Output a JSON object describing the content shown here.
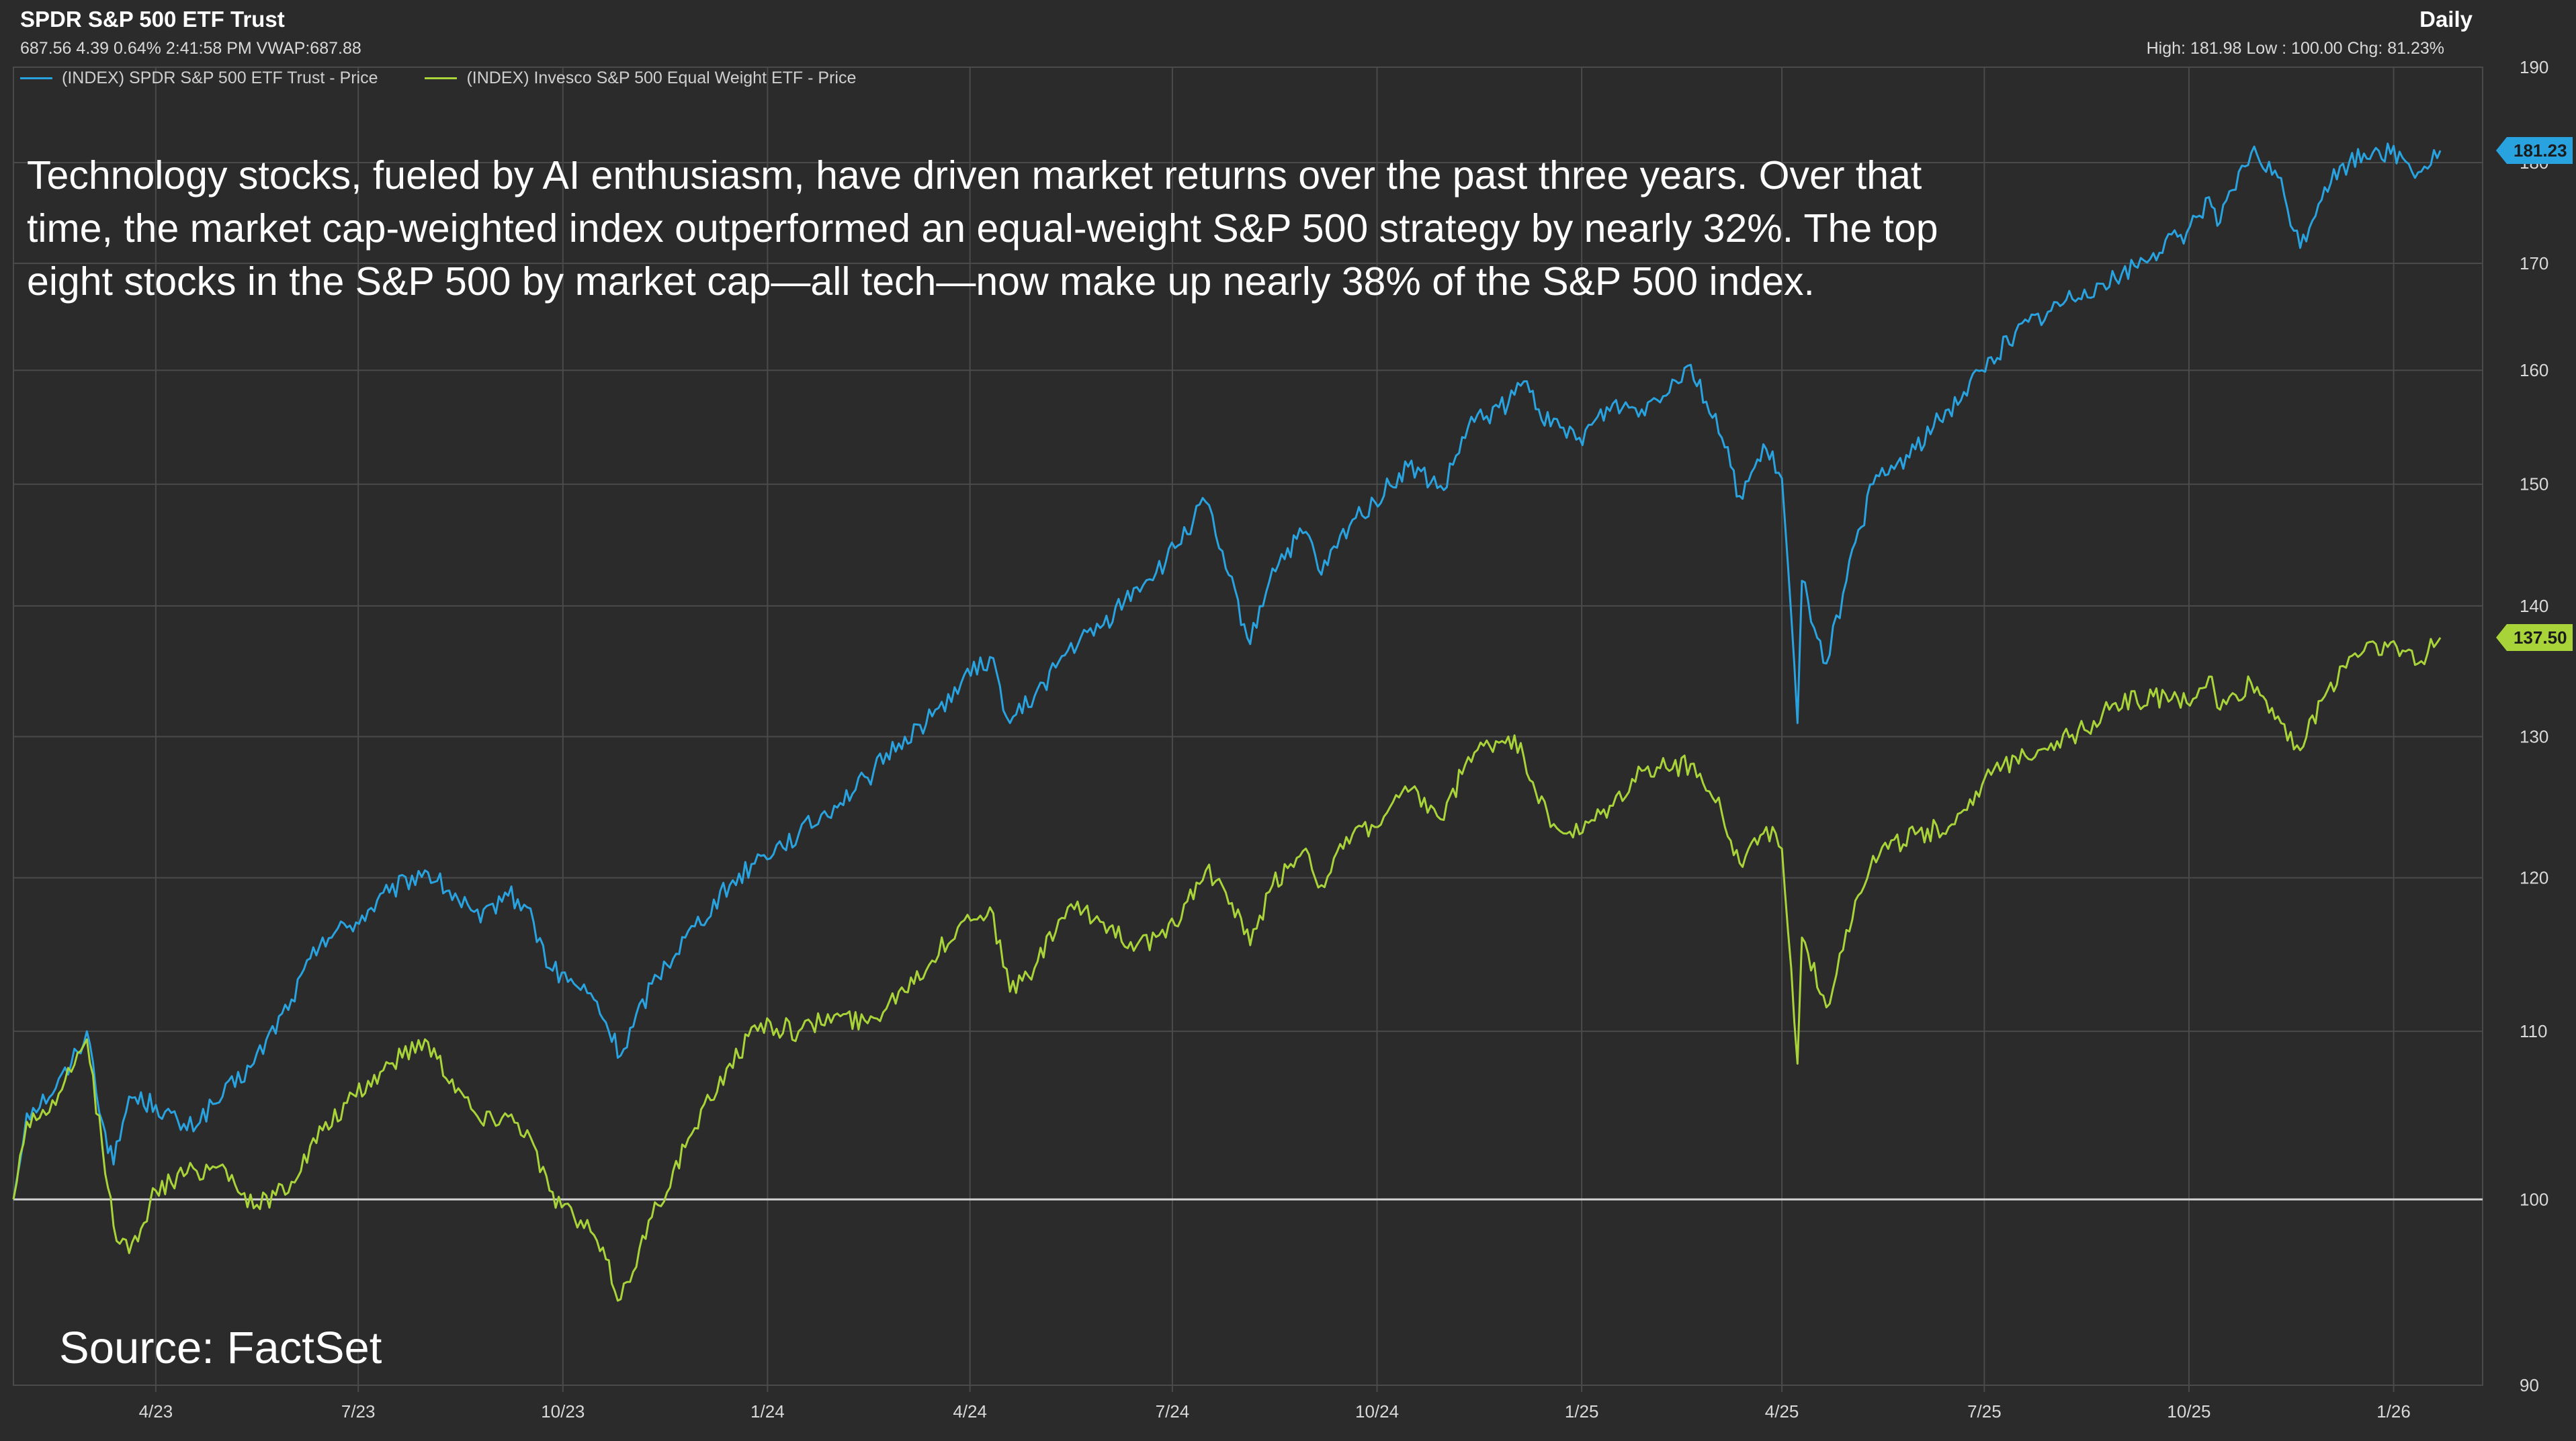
{
  "header": {
    "title": "SPDR S&P 500 ETF Trust",
    "quote": "687.56 4.39 0.64% 2:41:58 PM VWAP:687.88",
    "period": "Daily",
    "stats": "High: 181.98 Low : 100.00 Chg: 81.23%"
  },
  "annotation": "Technology stocks, fueled by AI enthusiasm, have driven market returns over the past three years. Over that time, the market cap-weighted index outperformed an equal-weight S&P 500 strategy by nearly 32%. The top eight stocks in the S&P 500 by market cap—all tech—now make up nearly 38% of the S&P 500 index.",
  "source": "Source: FactSet",
  "colors": {
    "background": "#2b2b2b",
    "grid": "#4a4a4a",
    "baseline": "#d0d0d0",
    "spy": "#29a3e0",
    "rsp": "#a8d43a",
    "axis_text": "#d9d9d9"
  },
  "chart_data": {
    "type": "line",
    "x_start": "2023-01-27",
    "x_end": "2026-01-22",
    "x_range": [
      "2023-01-27",
      "2026-02-10"
    ],
    "x_ticks": [
      {
        "date": "2023-04-01",
        "label": "4/23"
      },
      {
        "date": "2023-07-01",
        "label": "7/23"
      },
      {
        "date": "2023-10-01",
        "label": "10/23"
      },
      {
        "date": "2024-01-01",
        "label": "1/24"
      },
      {
        "date": "2024-04-01",
        "label": "4/24"
      },
      {
        "date": "2024-07-01",
        "label": "7/24"
      },
      {
        "date": "2024-10-01",
        "label": "10/24"
      },
      {
        "date": "2025-01-01",
        "label": "1/25"
      },
      {
        "date": "2025-04-01",
        "label": "4/25"
      },
      {
        "date": "2025-07-01",
        "label": "7/25"
      },
      {
        "date": "2025-10-01",
        "label": "10/25"
      },
      {
        "date": "2026-01-01",
        "label": "1/26"
      }
    ],
    "y_scale": "log",
    "ylim": [
      90,
      190
    ],
    "y_ticks": [
      90,
      100,
      110,
      120,
      130,
      140,
      150,
      160,
      170,
      180,
      190
    ],
    "baseline": 100,
    "grid": true,
    "legend_position": "top-left",
    "series": [
      {
        "name": "(INDEX) SPDR S&P 500 ETF Trust - Price",
        "color": "#29a3e0",
        "last_value": "181.23",
        "points": [
          [
            "2023-01-27",
            100.0
          ],
          [
            "2023-02-02",
            105.0
          ],
          [
            "2023-02-15",
            106.5
          ],
          [
            "2023-02-22",
            108.0
          ],
          [
            "2023-03-01",
            110.0
          ],
          [
            "2023-03-08",
            104.5
          ],
          [
            "2023-03-13",
            102.0
          ],
          [
            "2023-03-20",
            106.0
          ],
          [
            "2023-04-01",
            105.5
          ],
          [
            "2023-04-15",
            104.0
          ],
          [
            "2023-05-01",
            106.0
          ],
          [
            "2023-05-15",
            108.0
          ],
          [
            "2023-06-01",
            112.0
          ],
          [
            "2023-06-15",
            116.0
          ],
          [
            "2023-06-30",
            117.0
          ],
          [
            "2023-07-15",
            119.0
          ],
          [
            "2023-07-31",
            120.5
          ],
          [
            "2023-08-15",
            118.5
          ],
          [
            "2023-08-25",
            117.0
          ],
          [
            "2023-09-05",
            119.0
          ],
          [
            "2023-09-15",
            118.0
          ],
          [
            "2023-09-25",
            114.0
          ],
          [
            "2023-10-06",
            113.0
          ],
          [
            "2023-10-15",
            112.0
          ],
          [
            "2023-10-27",
            108.5
          ],
          [
            "2023-11-10",
            113.0
          ],
          [
            "2023-11-25",
            116.0
          ],
          [
            "2023-12-15",
            119.5
          ],
          [
            "2023-12-29",
            121.5
          ],
          [
            "2024-01-15",
            123.0
          ],
          [
            "2024-01-31",
            125.0
          ],
          [
            "2024-02-15",
            127.0
          ],
          [
            "2024-02-29",
            129.5
          ],
          [
            "2024-03-15",
            131.5
          ],
          [
            "2024-03-28",
            134.0
          ],
          [
            "2024-04-10",
            136.0
          ],
          [
            "2024-04-19",
            131.0
          ],
          [
            "2024-04-30",
            133.0
          ],
          [
            "2024-05-15",
            136.5
          ],
          [
            "2024-05-31",
            138.5
          ],
          [
            "2024-06-15",
            141.5
          ],
          [
            "2024-06-28",
            143.5
          ],
          [
            "2024-07-16",
            148.5
          ],
          [
            "2024-07-25",
            143.0
          ],
          [
            "2024-08-05",
            137.0
          ],
          [
            "2024-08-15",
            143.0
          ],
          [
            "2024-08-30",
            146.0
          ],
          [
            "2024-09-06",
            142.5
          ],
          [
            "2024-09-20",
            147.0
          ],
          [
            "2024-09-30",
            148.5
          ],
          [
            "2024-10-15",
            151.5
          ],
          [
            "2024-10-31",
            149.5
          ],
          [
            "2024-11-11",
            155.0
          ],
          [
            "2024-11-29",
            157.0
          ],
          [
            "2024-12-06",
            159.0
          ],
          [
            "2024-12-18",
            155.0
          ],
          [
            "2024-12-31",
            154.0
          ],
          [
            "2025-01-15",
            157.0
          ],
          [
            "2025-01-28",
            156.5
          ],
          [
            "2025-02-19",
            160.5
          ],
          [
            "2025-03-05",
            154.0
          ],
          [
            "2025-03-13",
            149.0
          ],
          [
            "2025-03-25",
            153.0
          ],
          [
            "2025-04-01",
            150.5
          ],
          [
            "2025-04-08",
            131.0
          ],
          [
            "2025-04-10",
            142.0
          ],
          [
            "2025-04-21",
            135.5
          ],
          [
            "2025-04-30",
            142.0
          ],
          [
            "2025-05-12",
            150.0
          ],
          [
            "2025-05-31",
            153.0
          ],
          [
            "2025-06-15",
            156.5
          ],
          [
            "2025-06-30",
            160.0
          ],
          [
            "2025-07-15",
            163.5
          ],
          [
            "2025-07-31",
            165.5
          ],
          [
            "2025-08-15",
            167.5
          ],
          [
            "2025-08-29",
            168.5
          ],
          [
            "2025-09-15",
            171.0
          ],
          [
            "2025-09-30",
            173.0
          ],
          [
            "2025-10-10",
            176.5
          ],
          [
            "2025-10-15",
            174.0
          ],
          [
            "2025-10-29",
            181.0
          ],
          [
            "2025-11-10",
            178.5
          ],
          [
            "2025-11-20",
            171.5
          ],
          [
            "2025-12-01",
            177.5
          ],
          [
            "2025-12-12",
            180.0
          ],
          [
            "2025-12-24",
            181.5
          ],
          [
            "2026-01-05",
            180.5
          ],
          [
            "2026-01-12",
            179.0
          ],
          [
            "2026-01-22",
            181.23
          ]
        ]
      },
      {
        "name": "(INDEX) Invesco S&P 500 Equal Weight ETF - Price",
        "color": "#a8d43a",
        "last_value": "137.50",
        "points": [
          [
            "2023-01-27",
            100.0
          ],
          [
            "2023-02-02",
            104.5
          ],
          [
            "2023-02-15",
            105.5
          ],
          [
            "2023-02-22",
            107.5
          ],
          [
            "2023-03-01",
            109.5
          ],
          [
            "2023-03-08",
            103.0
          ],
          [
            "2023-03-13",
            98.5
          ],
          [
            "2023-03-20",
            97.0
          ],
          [
            "2023-04-01",
            100.5
          ],
          [
            "2023-04-15",
            101.5
          ],
          [
            "2023-05-01",
            102.0
          ],
          [
            "2023-05-15",
            99.5
          ],
          [
            "2023-06-01",
            101.0
          ],
          [
            "2023-06-15",
            104.0
          ],
          [
            "2023-06-30",
            106.0
          ],
          [
            "2023-07-15",
            108.0
          ],
          [
            "2023-07-31",
            109.5
          ],
          [
            "2023-08-15",
            106.5
          ],
          [
            "2023-08-25",
            104.5
          ],
          [
            "2023-09-05",
            105.0
          ],
          [
            "2023-09-15",
            104.0
          ],
          [
            "2023-09-25",
            100.5
          ],
          [
            "2023-10-06",
            99.0
          ],
          [
            "2023-10-15",
            98.0
          ],
          [
            "2023-10-27",
            94.5
          ],
          [
            "2023-11-10",
            99.0
          ],
          [
            "2023-11-25",
            103.0
          ],
          [
            "2023-12-15",
            108.0
          ],
          [
            "2023-12-29",
            110.5
          ],
          [
            "2024-01-15",
            110.0
          ],
          [
            "2024-01-31",
            111.0
          ],
          [
            "2024-02-15",
            110.5
          ],
          [
            "2024-02-29",
            112.5
          ],
          [
            "2024-03-15",
            114.5
          ],
          [
            "2024-03-28",
            117.0
          ],
          [
            "2024-04-10",
            118.0
          ],
          [
            "2024-04-19",
            112.5
          ],
          [
            "2024-04-30",
            114.0
          ],
          [
            "2024-05-15",
            118.0
          ],
          [
            "2024-05-31",
            117.0
          ],
          [
            "2024-06-15",
            115.5
          ],
          [
            "2024-06-28",
            116.0
          ],
          [
            "2024-07-16",
            120.5
          ],
          [
            "2024-07-25",
            119.0
          ],
          [
            "2024-08-05",
            115.5
          ],
          [
            "2024-08-15",
            119.5
          ],
          [
            "2024-08-30",
            122.0
          ],
          [
            "2024-09-06",
            119.5
          ],
          [
            "2024-09-20",
            123.0
          ],
          [
            "2024-09-30",
            123.5
          ],
          [
            "2024-10-15",
            126.0
          ],
          [
            "2024-10-31",
            124.0
          ],
          [
            "2024-11-11",
            128.5
          ],
          [
            "2024-11-29",
            130.0
          ],
          [
            "2024-12-06",
            128.5
          ],
          [
            "2024-12-18",
            123.5
          ],
          [
            "2024-12-31",
            123.0
          ],
          [
            "2025-01-15",
            125.0
          ],
          [
            "2025-01-28",
            127.5
          ],
          [
            "2025-02-19",
            128.0
          ],
          [
            "2025-03-05",
            124.5
          ],
          [
            "2025-03-13",
            121.0
          ],
          [
            "2025-03-25",
            123.5
          ],
          [
            "2025-04-01",
            122.0
          ],
          [
            "2025-04-08",
            108.0
          ],
          [
            "2025-04-10",
            116.0
          ],
          [
            "2025-04-21",
            111.5
          ],
          [
            "2025-04-30",
            116.5
          ],
          [
            "2025-05-12",
            121.5
          ],
          [
            "2025-05-31",
            123.0
          ],
          [
            "2025-06-15",
            123.5
          ],
          [
            "2025-06-30",
            126.5
          ],
          [
            "2025-07-15",
            128.5
          ],
          [
            "2025-07-31",
            129.5
          ],
          [
            "2025-08-15",
            130.5
          ],
          [
            "2025-08-29",
            132.5
          ],
          [
            "2025-09-15",
            133.0
          ],
          [
            "2025-09-30",
            132.5
          ],
          [
            "2025-10-10",
            134.5
          ],
          [
            "2025-10-15",
            132.0
          ],
          [
            "2025-10-29",
            134.0
          ],
          [
            "2025-11-10",
            131.5
          ],
          [
            "2025-11-20",
            129.0
          ],
          [
            "2025-12-01",
            133.0
          ],
          [
            "2025-12-12",
            136.0
          ],
          [
            "2025-12-24",
            137.0
          ],
          [
            "2026-01-05",
            136.5
          ],
          [
            "2026-01-12",
            135.5
          ],
          [
            "2026-01-22",
            137.5
          ]
        ]
      }
    ]
  }
}
